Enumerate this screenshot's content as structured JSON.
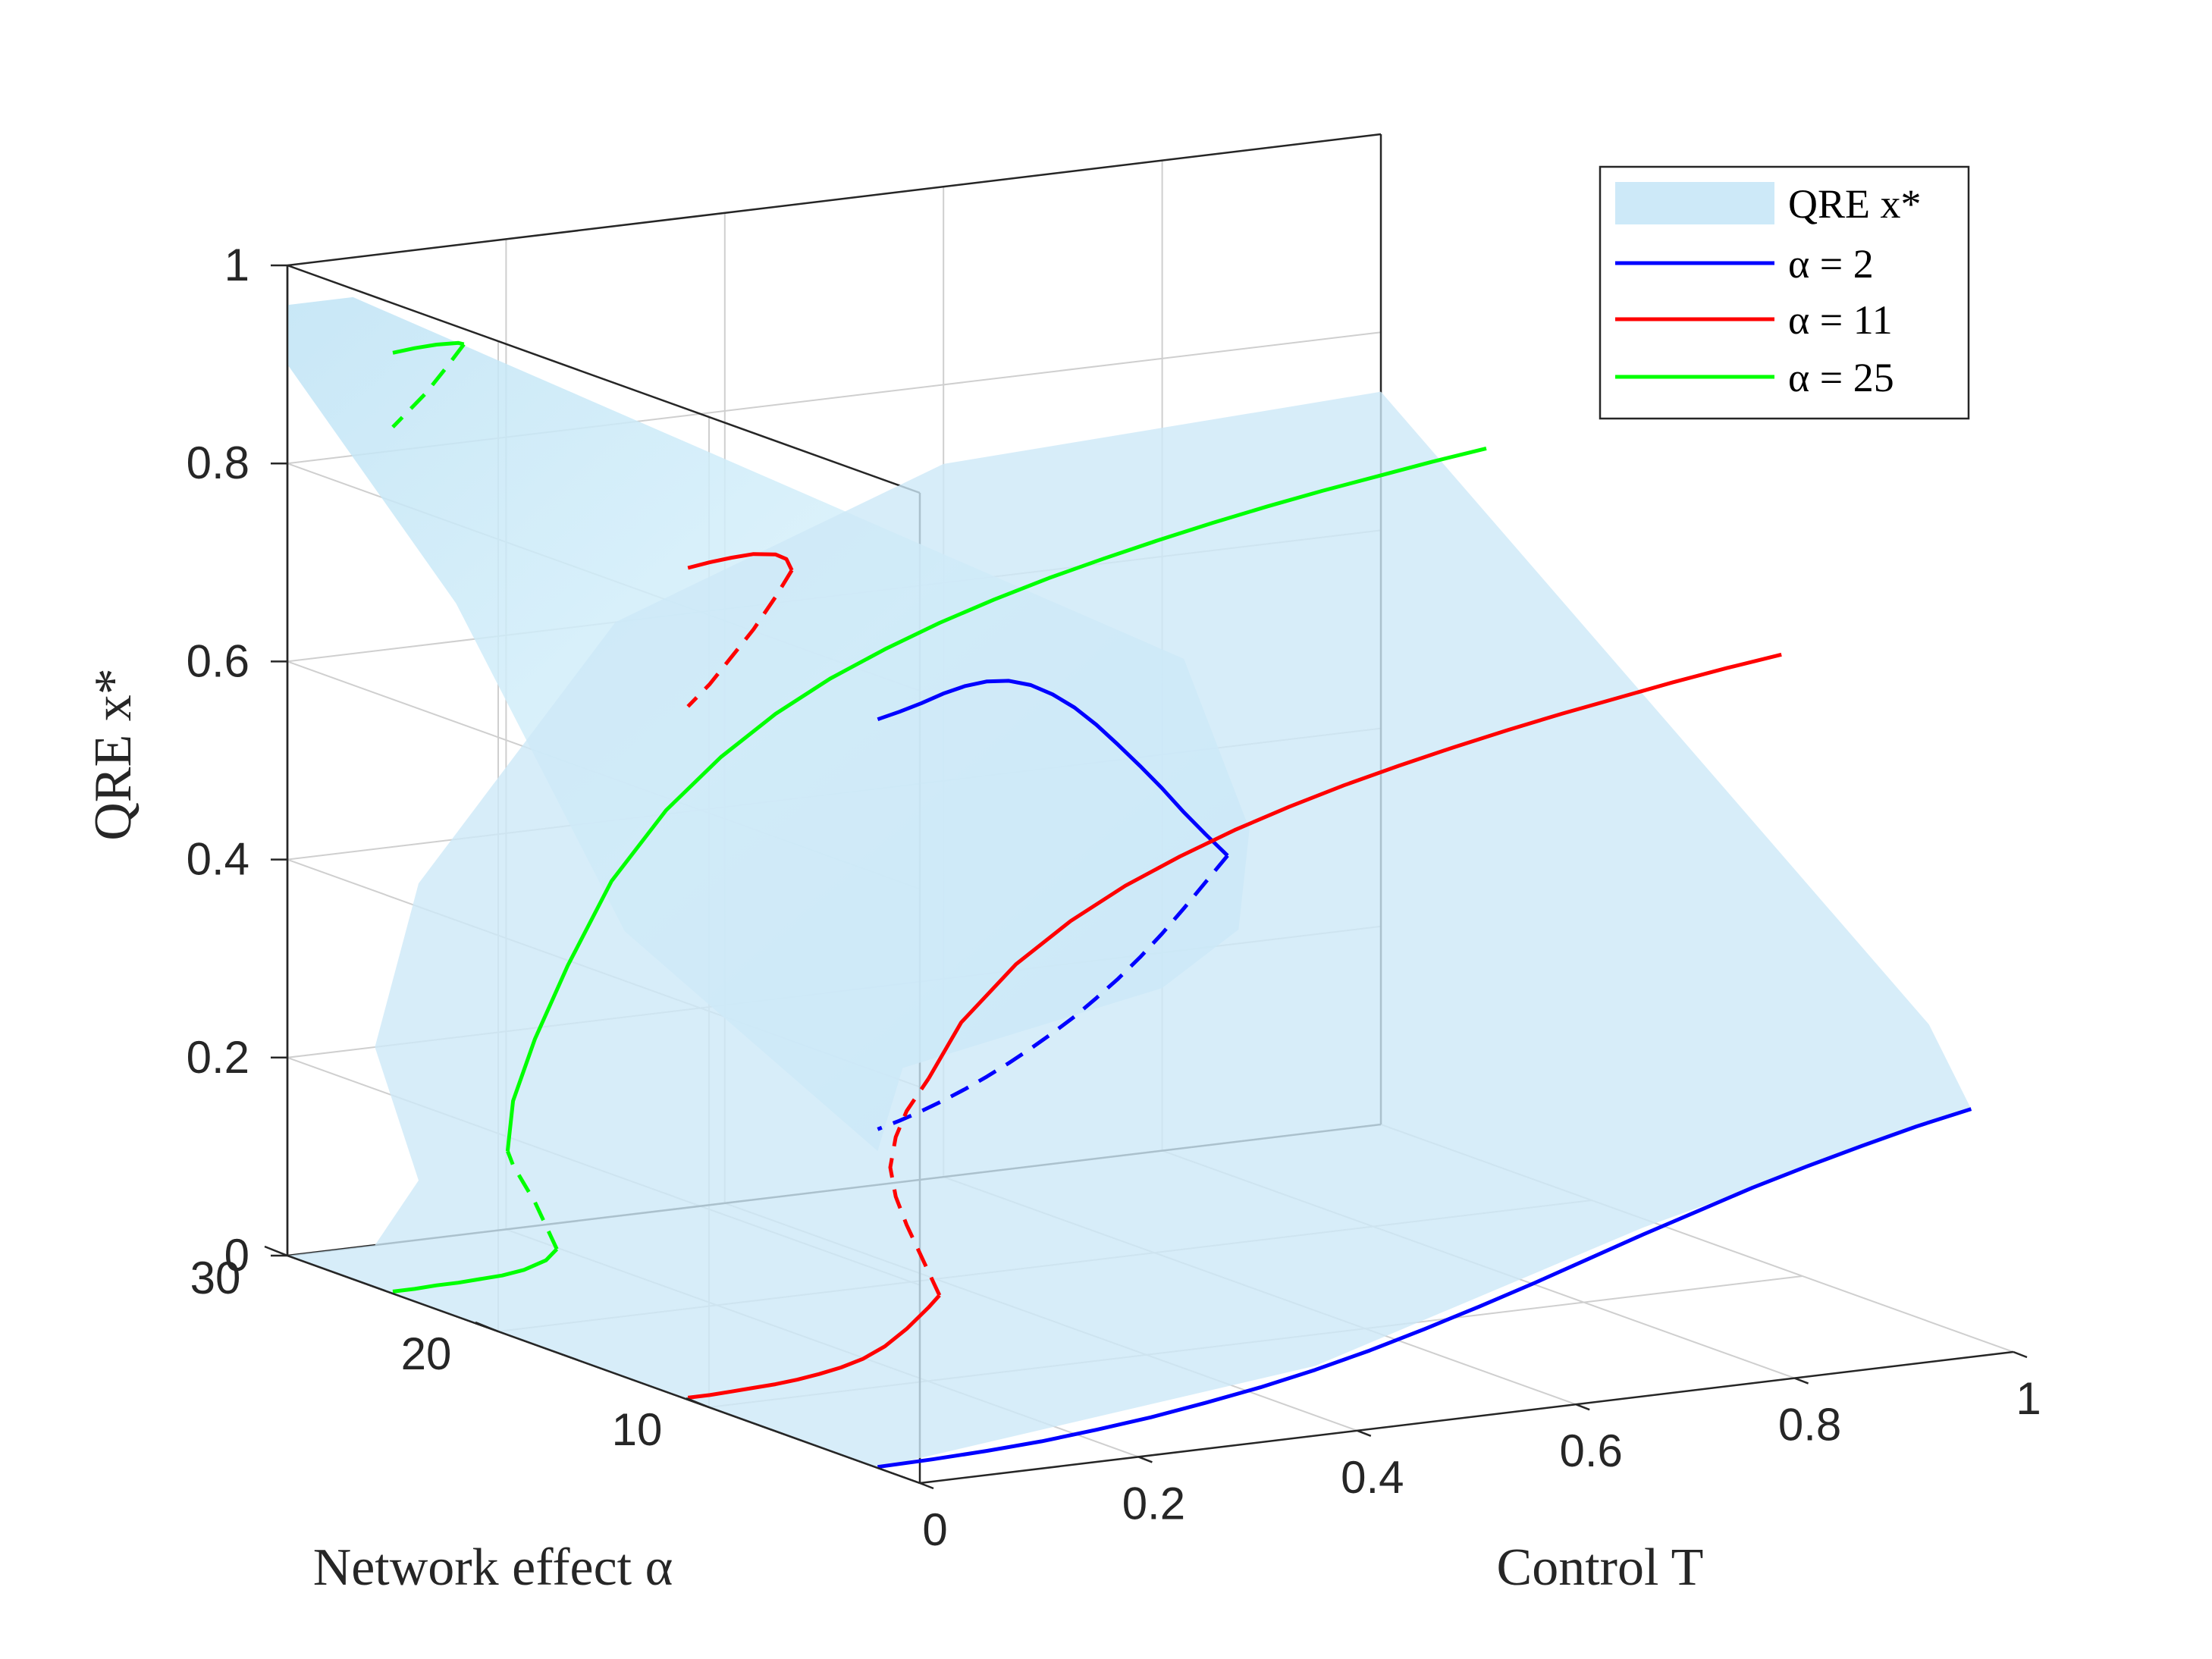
{
  "chart_data": {
    "type": "surface3d",
    "title": "",
    "xlabel": "Control T",
    "ylabel": "Network effect α",
    "zlabel": "QRE x*",
    "xlim": [
      0,
      1
    ],
    "ylim": [
      0,
      30
    ],
    "zlim": [
      0,
      1
    ],
    "x_ticks": [
      "0",
      "0.2",
      "0.4",
      "0.6",
      "0.8",
      "1"
    ],
    "y_ticks": [
      "10",
      "20",
      "30"
    ],
    "z_ticks": [
      "0",
      "0.2",
      "0.4",
      "0.6",
      "0.8",
      "1"
    ],
    "surface": {
      "name": "QRE x*",
      "color": "#cde9f8"
    },
    "series": [
      {
        "name": "α = 2",
        "alpha": 2,
        "color": "#0000ff",
        "branches": [
          {
            "style": "solid",
            "T": [
              0.0,
              0.05,
              0.1,
              0.15,
              0.2,
              0.25,
              0.3,
              0.35,
              0.4,
              0.45,
              0.5,
              0.55,
              0.6,
              0.65,
              0.7,
              0.75,
              0.8,
              0.85,
              0.9,
              0.95,
              1.0
            ],
            "x": [
              0.001,
              0.002,
              0.004,
              0.007,
              0.012,
              0.018,
              0.026,
              0.035,
              0.046,
              0.059,
              0.074,
              0.09,
              0.107,
              0.125,
              0.143,
              0.16,
              0.177,
              0.192,
              0.206,
              0.219,
              0.23
            ]
          },
          {
            "style": "solid",
            "T": [
              0.0,
              0.02,
              0.04,
              0.06,
              0.08,
              0.1,
              0.12,
              0.14,
              0.16,
              0.18,
              0.2,
              0.22,
              0.24,
              0.26,
              0.28,
              0.3,
              0.32
            ],
            "x": [
              0.756,
              0.761,
              0.767,
              0.774,
              0.779,
              0.781,
              0.779,
              0.772,
              0.76,
              0.744,
              0.724,
              0.701,
              0.677,
              0.652,
              0.625,
              0.6,
              0.576
            ]
          },
          {
            "style": "dashed",
            "T": [
              0.32,
              0.3,
              0.28,
              0.26,
              0.24,
              0.22,
              0.2,
              0.18,
              0.16,
              0.14,
              0.12,
              0.1,
              0.08,
              0.06,
              0.04,
              0.02,
              0.0
            ],
            "x": [
              0.576,
              0.552,
              0.528,
              0.505,
              0.484,
              0.465,
              0.448,
              0.432,
              0.418,
              0.405,
              0.393,
              0.382,
              0.372,
              0.363,
              0.355,
              0.348,
              0.342
            ]
          }
        ]
      },
      {
        "name": "α = 11",
        "alpha": 11,
        "color": "#ff0000",
        "branches": [
          {
            "style": "solid",
            "T": [
              0.0,
              0.02,
              0.04,
              0.06,
              0.08,
              0.1,
              0.12,
              0.14,
              0.16,
              0.18,
              0.2,
              0.22,
              0.23
            ],
            "x": [
              0.002,
              0.002,
              0.003,
              0.004,
              0.005,
              0.007,
              0.01,
              0.014,
              0.02,
              0.03,
              0.045,
              0.064,
              0.075
            ]
          },
          {
            "style": "dashed",
            "T": [
              0.23,
              0.22,
              0.21,
              0.2,
              0.19,
              0.185,
              0.19,
              0.2,
              0.21,
              0.22
            ],
            "x": [
              0.075,
              0.1,
              0.125,
              0.15,
              0.18,
              0.21,
              0.24,
              0.265,
              0.28,
              0.295
            ]
          },
          {
            "style": "solid",
            "T": [
              0.22,
              0.25,
              0.3,
              0.35,
              0.4,
              0.45,
              0.5,
              0.55,
              0.6,
              0.65,
              0.7,
              0.75,
              0.8,
              0.85,
              0.9,
              0.95,
              1.0
            ],
            "x": [
              0.295,
              0.348,
              0.4,
              0.437,
              0.466,
              0.489,
              0.509,
              0.526,
              0.541,
              0.554,
              0.566,
              0.577,
              0.587,
              0.596,
              0.605,
              0.613,
              0.62
            ]
          },
          {
            "style": "solid",
            "T": [
              0.0,
              0.02,
              0.04,
              0.06,
              0.08,
              0.09,
              0.095
            ],
            "x": [
              0.84,
              0.843,
              0.845,
              0.846,
              0.843,
              0.837,
              0.825
            ]
          },
          {
            "style": "dashed",
            "T": [
              0.095,
              0.08,
              0.06,
              0.04,
              0.02,
              0.0
            ],
            "x": [
              0.825,
              0.8,
              0.77,
              0.745,
              0.72,
              0.7
            ]
          }
        ]
      },
      {
        "name": "α = 25",
        "alpha": 25,
        "color": "#00ff00",
        "branches": [
          {
            "style": "solid",
            "T": [
              0.0,
              0.02,
              0.04,
              0.06,
              0.08,
              0.1,
              0.12,
              0.14,
              0.15
            ],
            "x": [
              0.002,
              0.002,
              0.003,
              0.003,
              0.004,
              0.005,
              0.008,
              0.015,
              0.025
            ]
          },
          {
            "style": "dashed",
            "T": [
              0.15,
              0.14,
              0.13,
              0.12,
              0.11,
              0.105
            ],
            "x": [
              0.025,
              0.05,
              0.075,
              0.095,
              0.115,
              0.13
            ]
          },
          {
            "style": "solid",
            "T": [
              0.105,
              0.11,
              0.13,
              0.16,
              0.2,
              0.25,
              0.3,
              0.35,
              0.4,
              0.45,
              0.5,
              0.55,
              0.6,
              0.65,
              0.7,
              0.75,
              0.8,
              0.85,
              0.9,
              0.95,
              1.0
            ],
            "x": [
              0.13,
              0.18,
              0.24,
              0.31,
              0.39,
              0.455,
              0.502,
              0.539,
              0.568,
              0.591,
              0.611,
              0.628,
              0.643,
              0.656,
              0.668,
              0.679,
              0.689,
              0.698,
              0.706,
              0.714,
              0.721
            ]
          },
          {
            "style": "solid",
            "T": [
              0.0,
              0.02,
              0.04,
              0.06,
              0.065
            ],
            "x": [
              0.95,
              0.952,
              0.953,
              0.952,
              0.95
            ]
          },
          {
            "style": "dashed",
            "T": [
              0.065,
              0.05,
              0.03,
              0.01,
              0.0
            ],
            "x": [
              0.95,
              0.93,
              0.905,
              0.885,
              0.875
            ]
          }
        ]
      }
    ],
    "legend": {
      "position": "top-right",
      "entries": [
        {
          "label": "QRE x*",
          "color": "#cde9f8",
          "kind": "patch"
        },
        {
          "label": "α = 2",
          "color": "#0000ff",
          "kind": "line"
        },
        {
          "label": "α = 11",
          "color": "#ff0000",
          "kind": "line"
        },
        {
          "label": "α = 25",
          "color": "#00ff00",
          "kind": "line"
        }
      ]
    }
  }
}
